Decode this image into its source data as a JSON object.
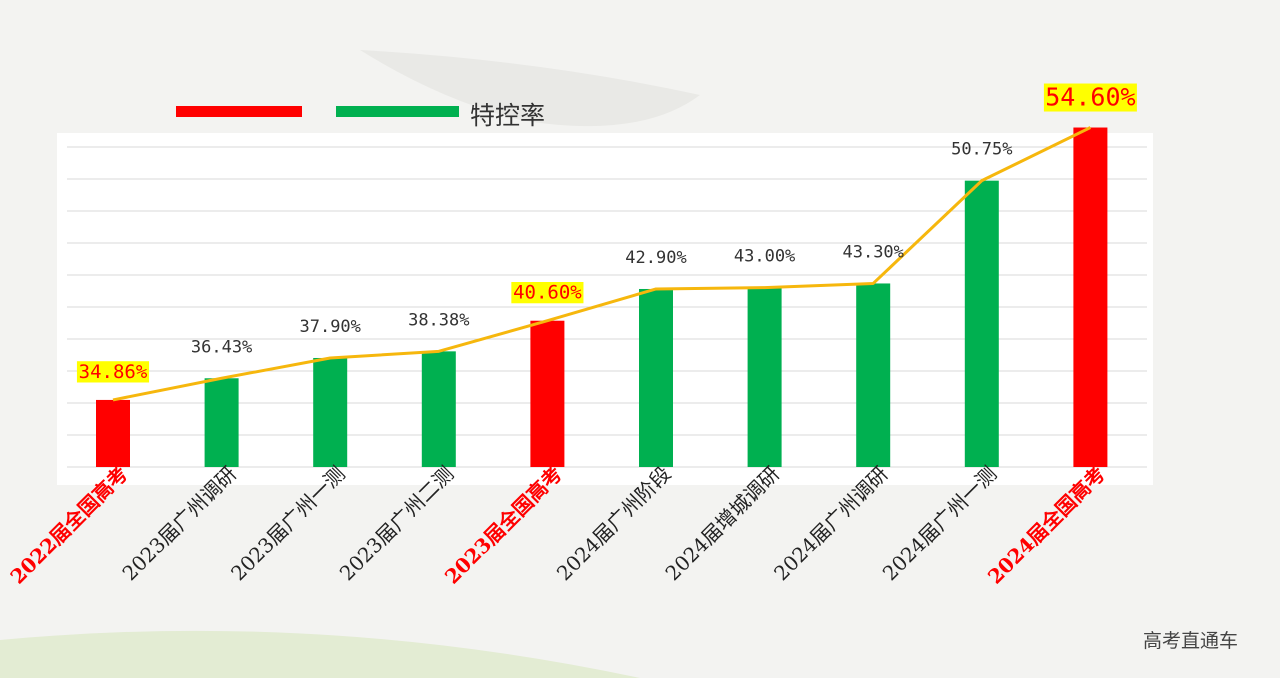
{
  "chart_data": {
    "type": "bar",
    "legend": [
      {
        "name": "",
        "color": "#ff0000"
      },
      {
        "name": "",
        "color": "#00b050"
      },
      {
        "name": "特控率",
        "color": ""
      }
    ],
    "categories": [
      "2022届全国高考",
      "2023届广州调研",
      "2023届广州一测",
      "2023届广州二测",
      "2023届全国高考",
      "2024届广州阶段",
      "2024届增城调研",
      "2024届广州调研",
      "2024届广州一测",
      "2024届全国高考"
    ],
    "values": [
      34.86,
      36.43,
      37.9,
      38.38,
      40.6,
      42.9,
      43.0,
      43.3,
      50.75,
      54.6
    ],
    "labels": [
      "34.86%",
      "36.43%",
      "37.90%",
      "38.38%",
      "40.60%",
      "42.90%",
      "43.00%",
      "43.30%",
      "50.75%",
      "54.60%"
    ],
    "highlight": [
      true,
      false,
      false,
      false,
      true,
      false,
      false,
      false,
      false,
      true
    ],
    "ylim": [
      30,
      55
    ],
    "gridlines": 10,
    "trend_line": true,
    "colors": {
      "highlight_bar": "#ff0000",
      "normal_bar": "#00b050",
      "line": "#f6b70d",
      "label_highlight_bg": "#ffff00",
      "label_highlight_text": "#ff0000",
      "label_normal_text": "#333333",
      "category_highlight": "#ff0000",
      "category_normal": "#222222"
    }
  },
  "watermark": "高考直通车"
}
